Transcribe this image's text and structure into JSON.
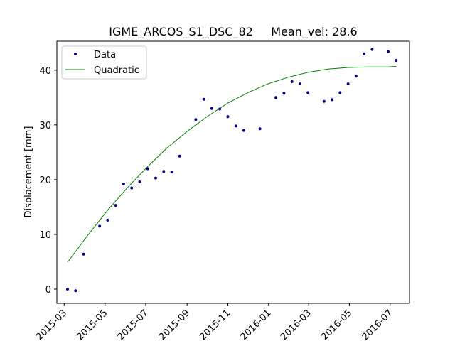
{
  "chart_data": {
    "type": "scatter",
    "title": "IGME_ARCOS_S1_DSC_82     Mean_vel: 28.6",
    "xlabel": "",
    "ylabel": "Displacement [mm]",
    "x_tick_labels": [
      "2015-03",
      "2015-05",
      "2015-07",
      "2015-09",
      "2015-11",
      "2016-01",
      "2016-03",
      "2016-05",
      "2016-07"
    ],
    "x_tick_dates": [
      "2015-03-01",
      "2015-05-01",
      "2015-07-01",
      "2015-09-01",
      "2015-11-01",
      "2016-01-01",
      "2016-03-01",
      "2016-05-01",
      "2016-07-01"
    ],
    "xlim": [
      "2015-02-18",
      "2016-07-30"
    ],
    "ylim": [
      -2.6,
      45.3
    ],
    "y_ticks": [
      0,
      10,
      20,
      30,
      40
    ],
    "grid": false,
    "legend_position": "upper-left",
    "series": [
      {
        "name": "Data",
        "kind": "scatter",
        "color": "#00008b",
        "points": [
          {
            "x": "2015-03-06",
            "y": 0.0
          },
          {
            "x": "2015-03-18",
            "y": -0.3
          },
          {
            "x": "2015-03-30",
            "y": 6.4
          },
          {
            "x": "2015-04-23",
            "y": 11.5
          },
          {
            "x": "2015-05-05",
            "y": 12.6
          },
          {
            "x": "2015-05-17",
            "y": 15.3
          },
          {
            "x": "2015-05-29",
            "y": 19.2
          },
          {
            "x": "2015-06-10",
            "y": 18.5
          },
          {
            "x": "2015-06-22",
            "y": 19.6
          },
          {
            "x": "2015-07-04",
            "y": 22.0
          },
          {
            "x": "2015-07-16",
            "y": 20.3
          },
          {
            "x": "2015-07-28",
            "y": 21.5
          },
          {
            "x": "2015-08-09",
            "y": 21.4
          },
          {
            "x": "2015-08-21",
            "y": 24.3
          },
          {
            "x": "2015-09-14",
            "y": 31.0
          },
          {
            "x": "2015-09-26",
            "y": 34.7
          },
          {
            "x": "2015-10-08",
            "y": 33.0
          },
          {
            "x": "2015-10-20",
            "y": 32.9
          },
          {
            "x": "2015-11-01",
            "y": 31.5
          },
          {
            "x": "2015-11-13",
            "y": 29.8
          },
          {
            "x": "2015-11-25",
            "y": 29.0
          },
          {
            "x": "2015-12-19",
            "y": 29.3
          },
          {
            "x": "2016-01-12",
            "y": 35.0
          },
          {
            "x": "2016-01-24",
            "y": 35.8
          },
          {
            "x": "2016-02-05",
            "y": 37.9
          },
          {
            "x": "2016-02-17",
            "y": 37.5
          },
          {
            "x": "2016-02-29",
            "y": 35.9
          },
          {
            "x": "2016-03-24",
            "y": 34.3
          },
          {
            "x": "2016-04-05",
            "y": 34.6
          },
          {
            "x": "2016-04-17",
            "y": 35.9
          },
          {
            "x": "2016-04-29",
            "y": 37.5
          },
          {
            "x": "2016-05-11",
            "y": 38.9
          },
          {
            "x": "2016-05-23",
            "y": 43.0
          },
          {
            "x": "2016-06-04",
            "y": 43.8
          },
          {
            "x": "2016-06-28",
            "y": 43.4
          },
          {
            "x": "2016-07-10",
            "y": 41.8
          }
        ]
      },
      {
        "name": "Quadratic",
        "kind": "line",
        "color": "#008000",
        "points": [
          {
            "x": "2015-03-06",
            "y": 4.9
          },
          {
            "x": "2015-04-05",
            "y": 9.8
          },
          {
            "x": "2015-05-05",
            "y": 14.4
          },
          {
            "x": "2015-06-04",
            "y": 18.6
          },
          {
            "x": "2015-07-04",
            "y": 22.4
          },
          {
            "x": "2015-08-03",
            "y": 25.9
          },
          {
            "x": "2015-09-02",
            "y": 28.9
          },
          {
            "x": "2015-10-02",
            "y": 31.6
          },
          {
            "x": "2015-11-01",
            "y": 34.0
          },
          {
            "x": "2015-12-01",
            "y": 35.9
          },
          {
            "x": "2015-12-31",
            "y": 37.5
          },
          {
            "x": "2016-01-30",
            "y": 38.7
          },
          {
            "x": "2016-02-29",
            "y": 39.6
          },
          {
            "x": "2016-03-30",
            "y": 40.2
          },
          {
            "x": "2016-04-29",
            "y": 40.5
          },
          {
            "x": "2016-05-29",
            "y": 40.6
          },
          {
            "x": "2016-06-28",
            "y": 40.6
          },
          {
            "x": "2016-07-10",
            "y": 40.7
          }
        ]
      }
    ]
  }
}
